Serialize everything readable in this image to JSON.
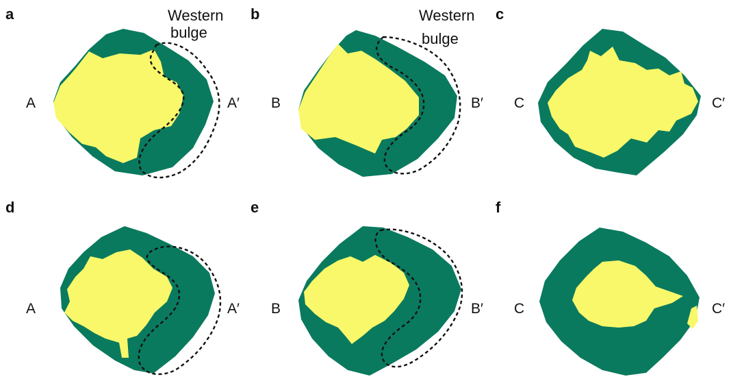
{
  "colors": {
    "outer": "#0a7a5e",
    "inner": "#f8f86a",
    "outline": "#111111",
    "text": "#111111"
  },
  "panels": [
    {
      "letter": "a",
      "left_label": "A",
      "right_label": "A′",
      "bulge_label": [
        "Western",
        "bulge"
      ]
    },
    {
      "letter": "b",
      "left_label": "B",
      "right_label": "B′",
      "bulge_label": [
        "Western",
        "bulge"
      ]
    },
    {
      "letter": "c",
      "left_label": "C",
      "right_label": "C′"
    },
    {
      "letter": "d",
      "left_label": "A",
      "right_label": "A′"
    },
    {
      "letter": "e",
      "left_label": "B",
      "right_label": "B′"
    },
    {
      "letter": "f",
      "left_label": "C",
      "right_label": "C′"
    }
  ]
}
